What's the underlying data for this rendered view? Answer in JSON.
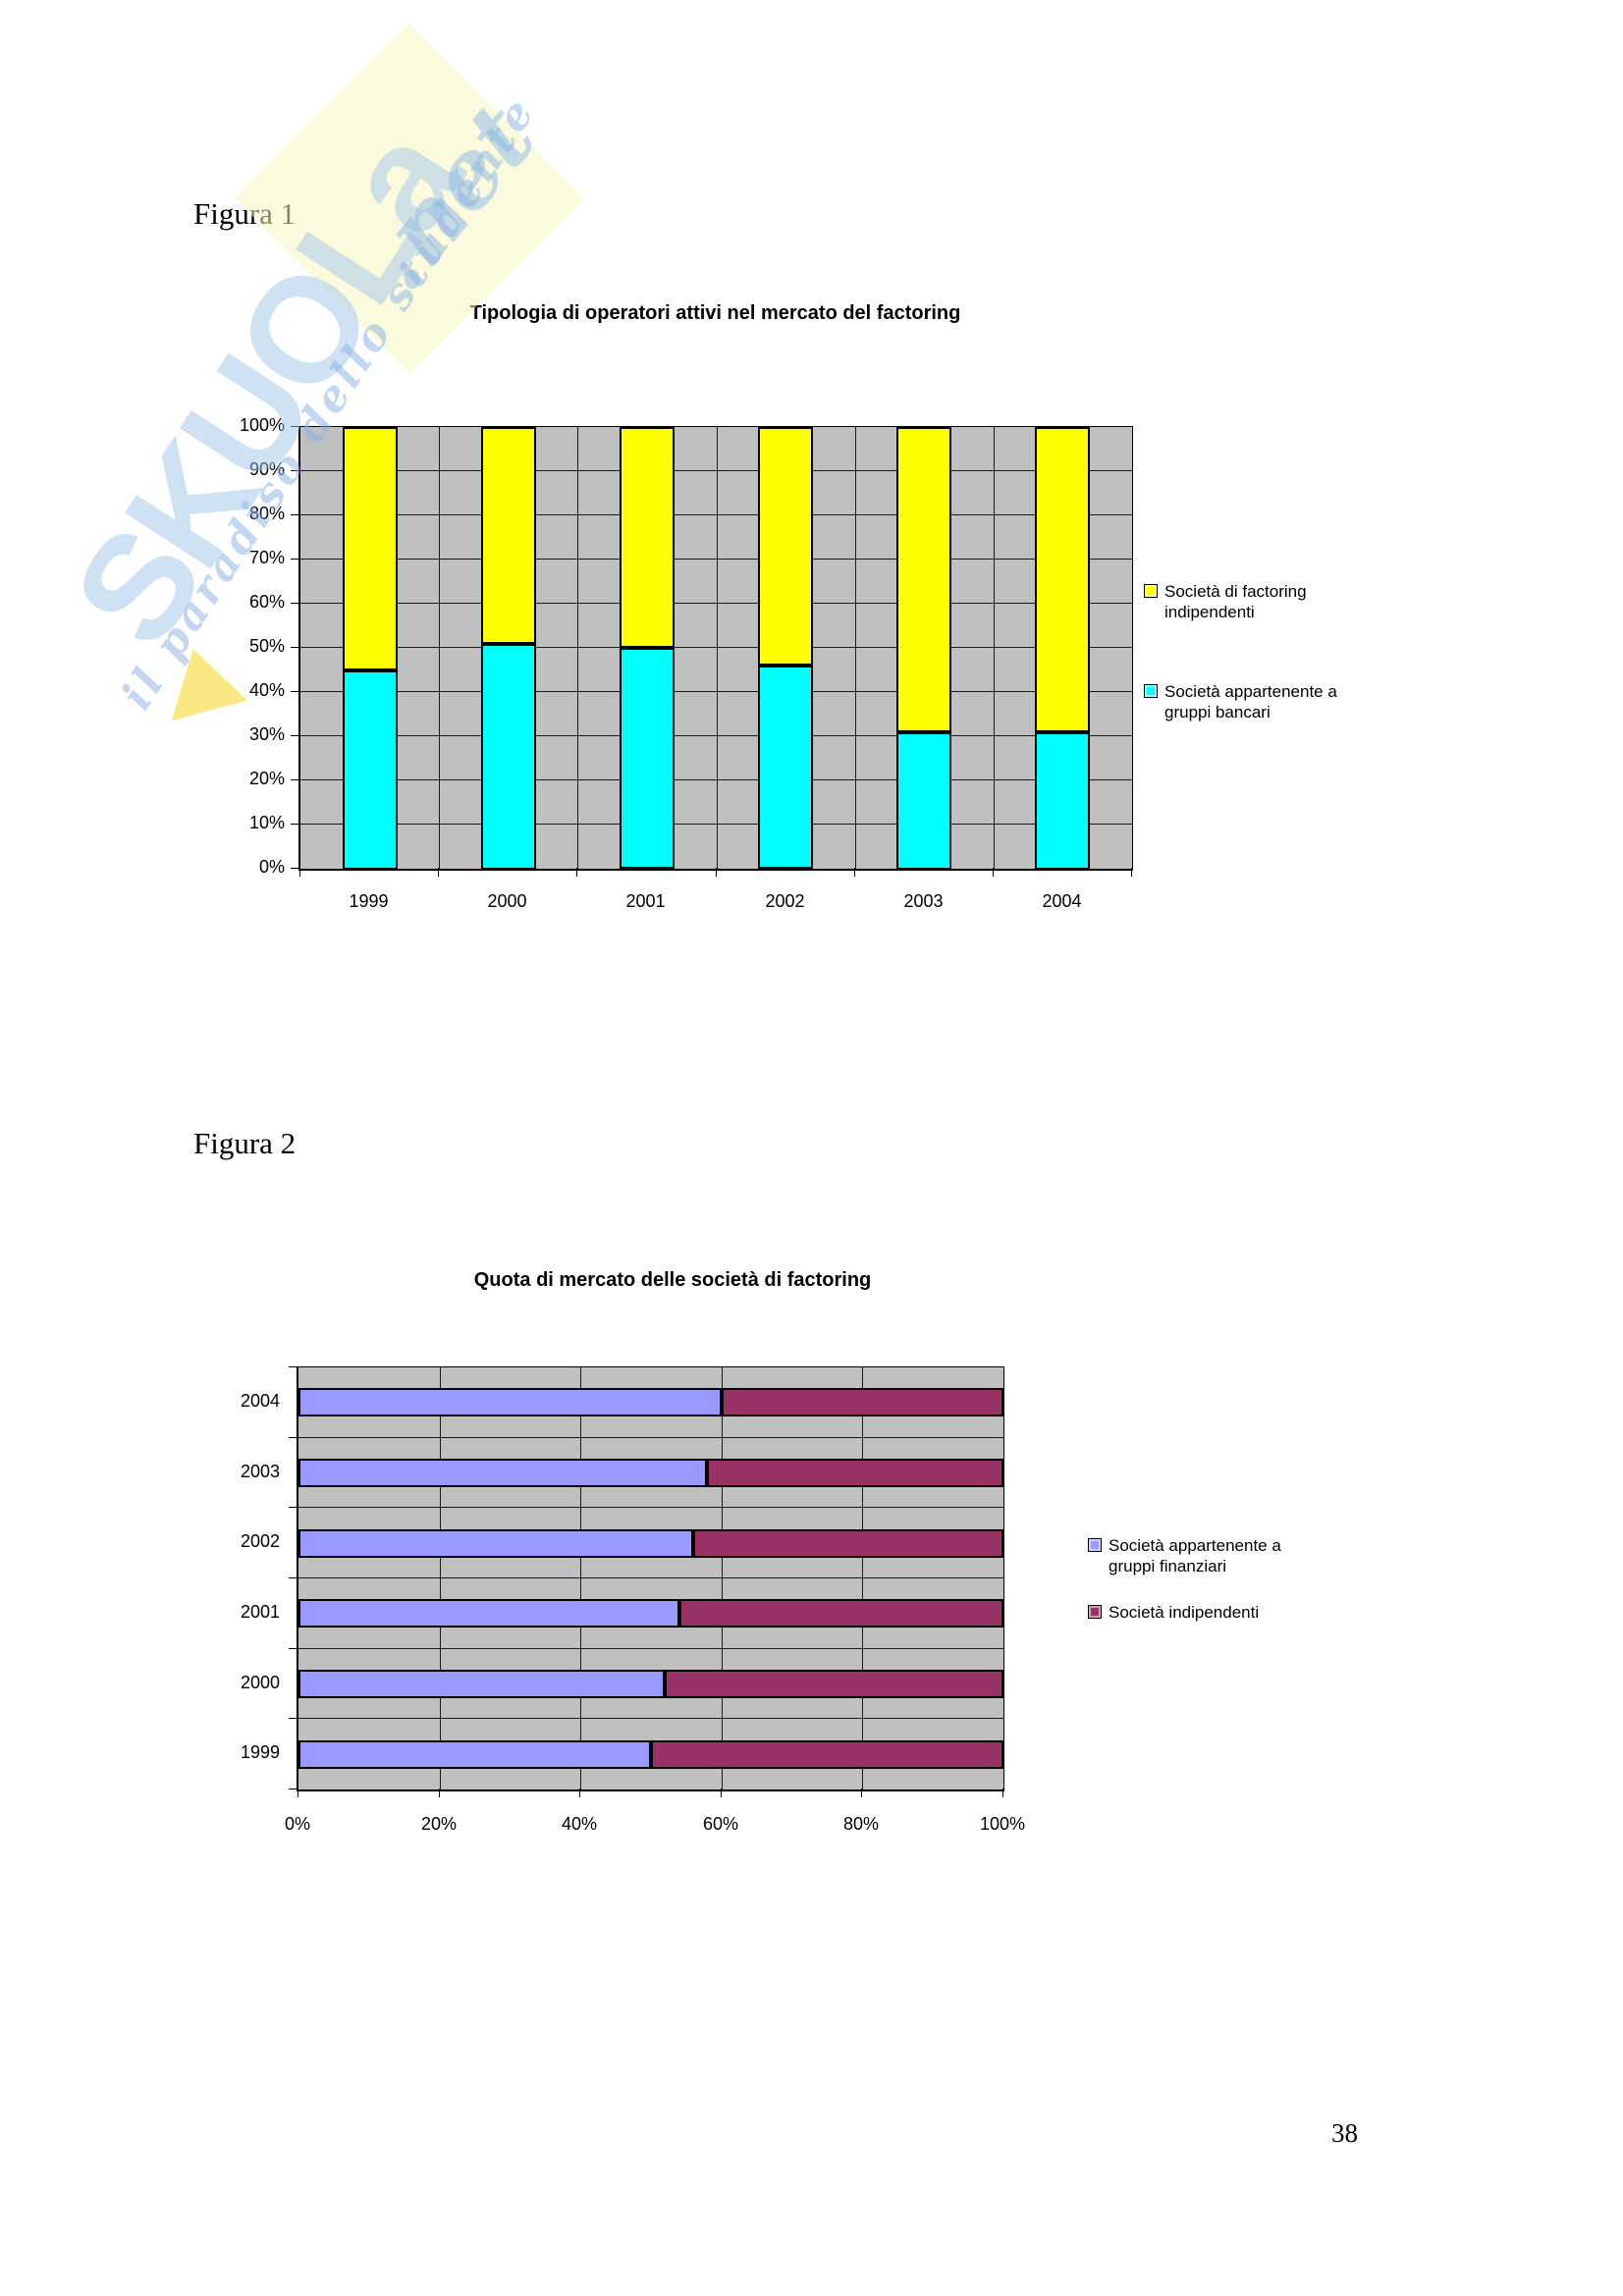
{
  "page": {
    "figure1_caption": "Figura 1",
    "figure2_caption": "Figura 2",
    "page_number": "38",
    "watermark": {
      "brand": "SKUOLa",
      "net": ".net",
      "tagline": "il paradiso dello studente"
    }
  },
  "colors": {
    "plot_background": "#C0C0C0",
    "gridline": "#1a1a1a",
    "axis": "#000000",
    "bar_border": "#000000",
    "series_gruppi_bancari": "#00FFFF",
    "series_factoring_indipendenti": "#FFFF00",
    "series_gruppi_finanziari": "#9999FF",
    "series_indipendenti": "#993366",
    "watermark_blue": "#9CC3E8",
    "watermark_yellow": "#FAF6C1"
  },
  "chart_data": [
    {
      "type": "bar",
      "orientation": "vertical",
      "stacked": true,
      "stack_total": 100,
      "title": "Tipologia di operatori attivi nel mercato del factoring",
      "categories": [
        "1999",
        "2000",
        "2001",
        "2002",
        "2003",
        "2004"
      ],
      "series": [
        {
          "name": "Società appartenente a gruppi bancari",
          "color": "#00FFFF",
          "values": [
            45,
            51,
            50,
            46,
            31,
            31
          ]
        },
        {
          "name": "Società di factoring indipendenti",
          "color": "#FFFF00",
          "values": [
            55,
            49,
            50,
            54,
            69,
            69
          ]
        }
      ],
      "y_ticks": [
        "0%",
        "10%",
        "20%",
        "30%",
        "40%",
        "50%",
        "60%",
        "70%",
        "80%",
        "90%",
        "100%"
      ],
      "ylim": [
        0,
        100
      ],
      "grid": true,
      "legend_position": "right",
      "legend": [
        {
          "label": "Società di factoring indipendenti",
          "color": "#FFFF00"
        },
        {
          "label": "Società appartenente a gruppi bancari",
          "color": "#00FFFF"
        }
      ]
    },
    {
      "type": "bar",
      "orientation": "horizontal",
      "stacked": true,
      "stack_total": 100,
      "title": "Quota di mercato delle società di factoring",
      "categories": [
        "2004",
        "2003",
        "2002",
        "2001",
        "2000",
        "1999"
      ],
      "series": [
        {
          "name": "Società appartenente a gruppi finanziari",
          "color": "#9999FF",
          "values": [
            60,
            58,
            56,
            54,
            52,
            50
          ]
        },
        {
          "name": "Società indipendenti",
          "color": "#993366",
          "values": [
            40,
            42,
            44,
            46,
            48,
            50
          ]
        }
      ],
      "x_ticks": [
        "0%",
        "20%",
        "40%",
        "60%",
        "80%",
        "100%"
      ],
      "xlim": [
        0,
        100
      ],
      "grid": true,
      "legend_position": "right",
      "legend": [
        {
          "label": "Società appartenente a gruppi finanziari",
          "color": "#9999FF"
        },
        {
          "label": "Società indipendenti",
          "color": "#993366"
        }
      ]
    }
  ]
}
